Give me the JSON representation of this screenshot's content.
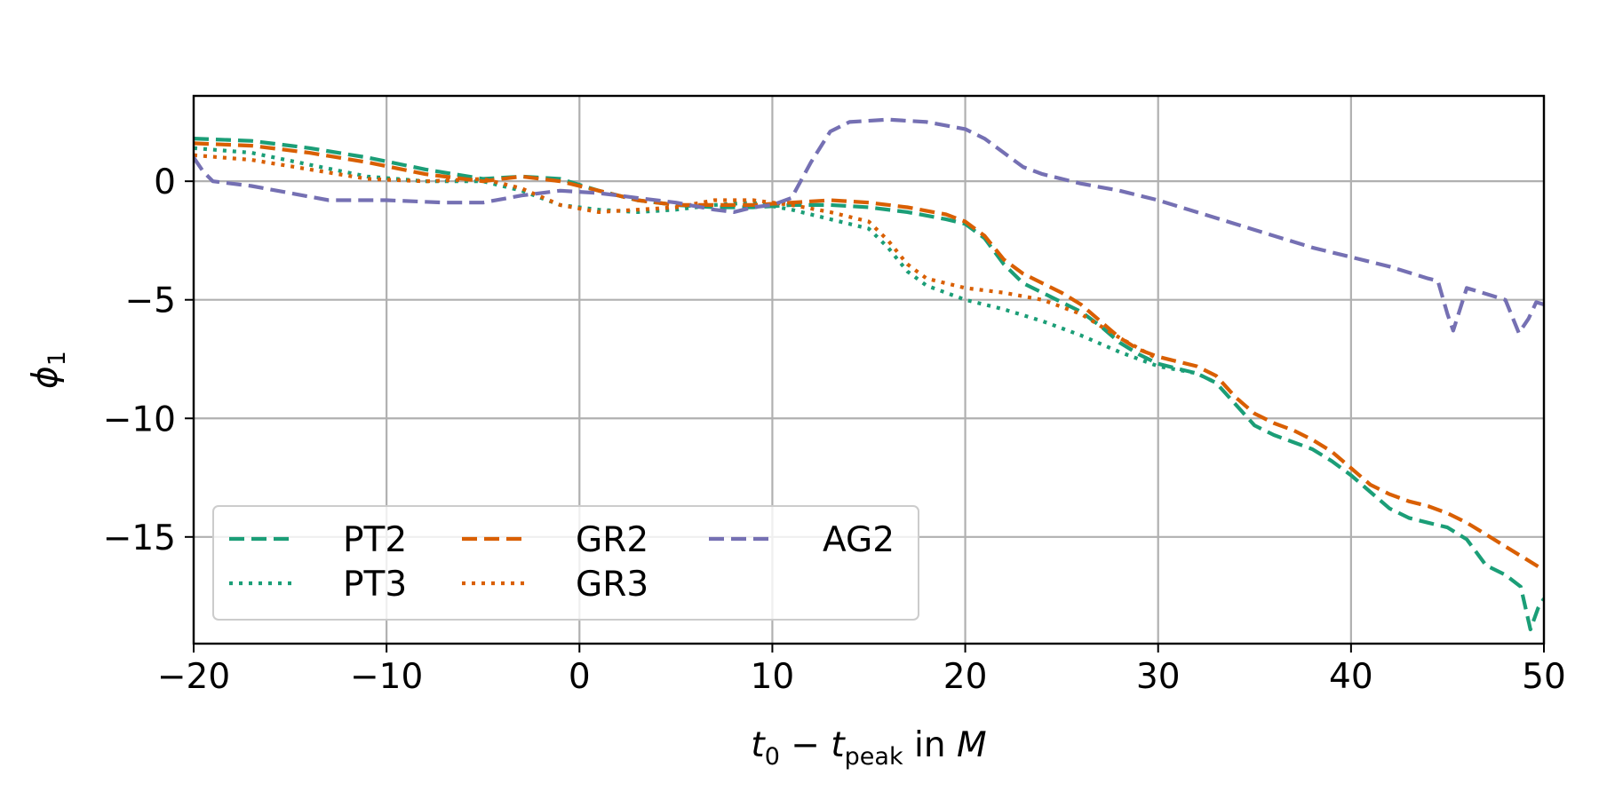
{
  "chart_data": {
    "type": "line",
    "title": "",
    "xlabel": {
      "main": "t",
      "sub0": "0",
      "minus": " − ",
      "t": "t",
      "sub1": "peak",
      "in": " in ",
      "M": "M"
    },
    "ylabel": {
      "main": "ϕ",
      "sub": "1"
    },
    "xlim": [
      -20,
      50
    ],
    "ylim": [
      -19.5,
      3.6
    ],
    "xticks": [
      -20,
      -10,
      0,
      10,
      20,
      30,
      40,
      50
    ],
    "xtick_labels": [
      "−20",
      "−10",
      "0",
      "10",
      "20",
      "30",
      "40",
      "50"
    ],
    "yticks": [
      0,
      -5,
      -10,
      -15
    ],
    "ytick_labels": [
      "0",
      "−5",
      "−10",
      "−15"
    ],
    "grid": true,
    "legend": {
      "position": "lower-left",
      "columns": 3
    },
    "series": [
      {
        "name": "PT2",
        "color": "#1b9e77",
        "dash": "dashed",
        "x": [
          -20,
          -17,
          -14,
          -11,
          -8,
          -5,
          -3,
          -1,
          1,
          3,
          5,
          7,
          9,
          11,
          13,
          15,
          17,
          19,
          20,
          21,
          22,
          23,
          24,
          25,
          26,
          27,
          28,
          29,
          30,
          31,
          32,
          33,
          34,
          35,
          36,
          37,
          38,
          39,
          40,
          41,
          42,
          43,
          44,
          45,
          46,
          47,
          48,
          48.8,
          49.3,
          49.7,
          50
        ],
        "y": [
          1.8,
          1.7,
          1.4,
          1.0,
          0.5,
          0.1,
          0.2,
          0.1,
          -0.4,
          -0.8,
          -1.0,
          -1.1,
          -1.1,
          -1.0,
          -1.0,
          -1.1,
          -1.3,
          -1.6,
          -1.8,
          -2.4,
          -3.5,
          -4.3,
          -4.7,
          -5.1,
          -5.5,
          -6.1,
          -6.8,
          -7.3,
          -7.7,
          -7.9,
          -8.1,
          -8.5,
          -9.4,
          -10.3,
          -10.7,
          -11.0,
          -11.3,
          -11.8,
          -12.4,
          -13.1,
          -13.8,
          -14.2,
          -14.4,
          -14.6,
          -15.1,
          -16.2,
          -16.6,
          -17.1,
          -18.9,
          -18.0,
          -17.6
        ]
      },
      {
        "name": "PT3",
        "color": "#1b9e77",
        "dash": "dotted",
        "x": [
          -20,
          -17,
          -14,
          -11,
          -8,
          -5,
          -3,
          -1,
          1,
          3,
          5,
          7,
          9,
          11,
          13,
          15,
          16,
          17,
          18,
          20,
          22,
          24,
          26,
          28,
          30,
          32,
          33
        ],
        "y": [
          1.4,
          1.2,
          0.7,
          0.2,
          0.0,
          0.0,
          -0.4,
          -1.0,
          -1.2,
          -1.3,
          -1.2,
          -1.0,
          -0.9,
          -1.2,
          -1.6,
          -2.0,
          -2.8,
          -3.8,
          -4.4,
          -5.0,
          -5.4,
          -5.9,
          -6.5,
          -7.2,
          -7.8,
          -8.1,
          -8.5
        ]
      },
      {
        "name": "GR2",
        "color": "#d95f02",
        "dash": "dashed",
        "x": [
          -20,
          -17,
          -14,
          -11,
          -8,
          -5,
          -3,
          -1,
          1,
          3,
          5,
          7,
          9,
          11,
          13,
          15,
          17,
          19,
          20,
          21,
          22,
          23,
          24,
          25,
          26,
          27,
          28,
          29,
          30,
          31,
          32,
          33,
          34,
          35,
          36,
          37,
          38,
          39,
          40,
          41,
          42,
          43,
          44,
          45,
          46,
          47,
          48,
          49,
          50
        ],
        "y": [
          1.6,
          1.5,
          1.2,
          0.8,
          0.3,
          0.0,
          0.2,
          0.0,
          -0.4,
          -0.8,
          -1.0,
          -1.0,
          -1.0,
          -0.9,
          -0.8,
          -0.9,
          -1.1,
          -1.4,
          -1.7,
          -2.3,
          -3.3,
          -3.9,
          -4.3,
          -4.7,
          -5.2,
          -5.9,
          -6.6,
          -7.1,
          -7.4,
          -7.6,
          -7.8,
          -8.2,
          -9.1,
          -9.8,
          -10.2,
          -10.5,
          -10.9,
          -11.4,
          -12.1,
          -12.8,
          -13.2,
          -13.5,
          -13.7,
          -14.0,
          -14.4,
          -14.9,
          -15.4,
          -15.9,
          -16.4
        ]
      },
      {
        "name": "GR3",
        "color": "#d95f02",
        "dash": "dotted",
        "x": [
          -20,
          -17,
          -14,
          -11,
          -8,
          -5,
          -3,
          -1,
          1,
          3,
          5,
          7,
          9,
          11,
          13,
          15,
          16,
          17,
          18,
          20,
          22,
          24,
          26,
          28,
          30
        ],
        "y": [
          1.1,
          0.9,
          0.5,
          0.1,
          0.0,
          0.1,
          -0.3,
          -1.0,
          -1.3,
          -1.2,
          -1.1,
          -0.8,
          -0.8,
          -1.0,
          -1.3,
          -1.7,
          -2.5,
          -3.5,
          -4.1,
          -4.5,
          -4.7,
          -5.0,
          -5.6,
          -6.6,
          -7.5
        ]
      },
      {
        "name": "AG2",
        "color": "#7570b3",
        "dash": "dashed",
        "x": [
          -20,
          -19.5,
          -19,
          -17,
          -15,
          -13,
          -10,
          -7,
          -5,
          -3,
          -1,
          1,
          3,
          5,
          7,
          8,
          9,
          10,
          11,
          12,
          13,
          14,
          16,
          18,
          20,
          21,
          22,
          23,
          24,
          26,
          28,
          30,
          32,
          34,
          36,
          38,
          40,
          42,
          44,
          44.5,
          45,
          45.3,
          46,
          48,
          48.7,
          49.2,
          49.6,
          50
        ],
        "y": [
          1.0,
          0.4,
          0.0,
          -0.2,
          -0.5,
          -0.8,
          -0.8,
          -0.9,
          -0.9,
          -0.6,
          -0.4,
          -0.5,
          -0.7,
          -0.9,
          -1.2,
          -1.3,
          -1.1,
          -1.0,
          -0.7,
          0.8,
          2.1,
          2.5,
          2.6,
          2.5,
          2.2,
          1.8,
          1.2,
          0.6,
          0.3,
          -0.1,
          -0.4,
          -0.8,
          -1.3,
          -1.8,
          -2.3,
          -2.8,
          -3.2,
          -3.6,
          -4.1,
          -4.2,
          -5.6,
          -6.3,
          -4.5,
          -5.0,
          -6.4,
          -5.8,
          -5.1,
          -5.2
        ]
      }
    ]
  }
}
